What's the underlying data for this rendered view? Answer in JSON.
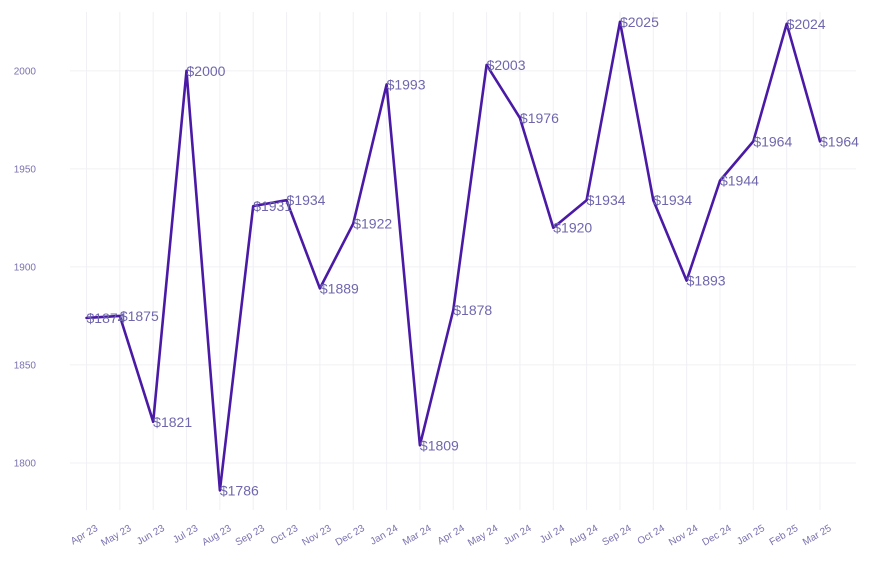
{
  "chart_data": {
    "type": "line",
    "title": "",
    "xlabel": "",
    "ylabel": "",
    "categories": [
      "Apr 23",
      "May 23",
      "Jun 23",
      "Jul 23",
      "Aug 23",
      "Sep 23",
      "Oct 23",
      "Nov 23",
      "Dec 23",
      "Jan 24",
      "Mar 24",
      "Apr 24",
      "May 24",
      "Jun 24",
      "Jul 24",
      "Aug 24",
      "Sep 24",
      "Oct 24",
      "Nov 24",
      "Dec 24",
      "Jan 25",
      "Feb 25",
      "Mar 25"
    ],
    "series": [
      {
        "values": [
          1874,
          1875,
          1821,
          2000,
          1786,
          1931,
          1934,
          1889,
          1922,
          1993,
          1809,
          1878,
          2003,
          1976,
          1920,
          1934,
          2025,
          1934,
          1893,
          1944,
          1964,
          2024,
          1964
        ],
        "labels": [
          "$1874",
          "$1875",
          "$1821",
          "$2000",
          "$1786",
          "$1931",
          "$1934",
          "$1889",
          "$1922",
          "$1993",
          "$1809",
          "$1878",
          "$2003",
          "$1976",
          "$1920",
          "$1934",
          "$2025",
          "$1934",
          "$1893",
          "$1944",
          "$1964",
          "$2024",
          "$1964"
        ]
      }
    ],
    "yticks": [
      1800,
      1850,
      1900,
      1950,
      2000
    ],
    "ylim": [
      1776,
      2030
    ],
    "grid": true,
    "line_color": "#4a1aa6"
  }
}
